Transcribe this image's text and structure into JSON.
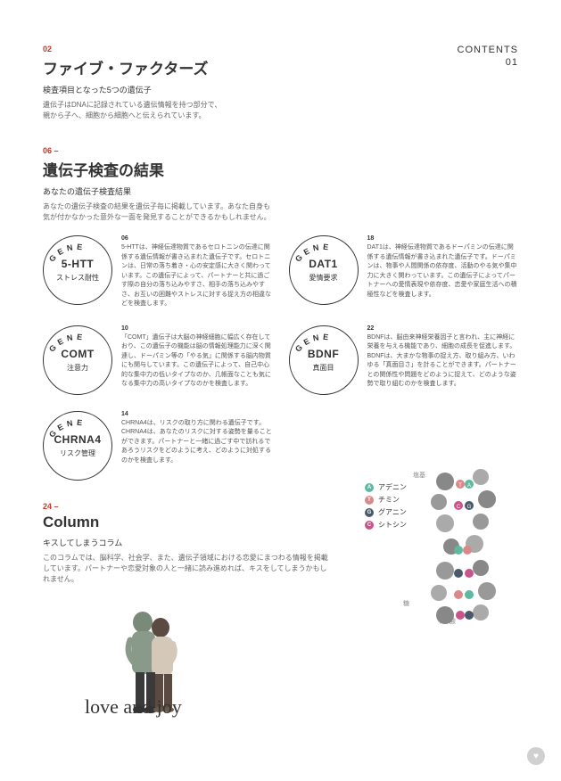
{
  "header": {
    "contents_label": "CONTENTS",
    "page_num": "01"
  },
  "sec1": {
    "num": "02",
    "title": "ファイブ・ファクターズ",
    "subtitle": "検査項目となった5つの遺伝子",
    "body1": "遺伝子はDNAに記録されている遺伝情報を持つ部分で、",
    "body2": "親から子へ、細胞から細胞へと伝えられています。"
  },
  "sec2": {
    "num": "06 –",
    "title": "遺伝子検査の結果",
    "subtitle": "あなたの遺伝子検査結果",
    "body1": "あなたの遺伝子検査の結果を遺伝子毎に掲載しています。あなた自身も",
    "body2": "気が付かなかった意外な一面を発見することができるかもしれません。"
  },
  "genes": [
    {
      "name": "5-HTT",
      "sub": "ストレス耐性",
      "num": "06",
      "desc": "5-HTTは、神経伝達物質であるセロトニンの伝達に関係する遺伝情報が書き込まれた遺伝子です。セロトニンは、日常の落ち着き・心の安定感に大きく関わっています。この遺伝子によって、パートナーと共に過ごす際の自分の落ち込みやすさ、相手の落ち込みやすさ、お互いの困難やストレスに対する捉え方の相違などを検査します。"
    },
    {
      "name": "DAT1",
      "sub": "愛情要求",
      "num": "18",
      "desc": "DAT1は、神経伝達物質であるドーパミンの伝達に関係する遺伝情報が書き込まれた遺伝子です。ドーパミンは、物事や人間関係の依存度、活動のやる気や集中力に大きく関わっています。この遺伝子によってパートナーへの愛情表現や依存度、恋愛や家庭生活への積極性などを検査します。"
    },
    {
      "name": "COMT",
      "sub": "注意力",
      "num": "10",
      "desc": "「COMT」遺伝子は大脳の神経細胞に幅広く存在しており、この遺伝子の機能は脳の情報処理能力に深く関連し、ドーパミン等の「やる気」に関係する脳内物質にも関与しています。この遺伝子によって、自己中心的な集中力の低いタイプなのか、几帳面なことも気になる集中力の高いタイプなのかを検査します。"
    },
    {
      "name": "BDNF",
      "sub": "真面目",
      "num": "22",
      "desc": "BDNFは、脳由来神経栄養因子と言われ、主に神経に栄養を与える機能であり、細胞の成長を促進します。BDNFは、大まかな物事の捉え方、取り組み方、いわゆる「真面目さ」を計ることができます。パートナーとの関係性や問題をどのように捉えて、どのような姿勢で取り組むのかを検査します。"
    },
    {
      "name": "CHRNA4",
      "sub": "リスク管理",
      "num": "14",
      "desc": "CHRNA4は、リスクの取り方に関わる遺伝子です。CHRNA4は、あなたのリスクに対する姿勢を量ることができます。パートナーと一緒に過ごす中で訪れるであろうリスクをどのように考え、どのように対処するのかを検査します。"
    }
  ],
  "gene_label": "GENE",
  "column": {
    "num": "24 –",
    "title": "Column",
    "subtitle": "キスしてしまうコラム",
    "body": "このコラムでは、脳科学、社会学、また、遺伝子領域における恋愛にまつわる情報を掲載しています。パートナーや恋愛対象の人と一緒に読み進めれば、キスをしてしまうかもしれません。"
  },
  "love_text": "love and joy",
  "dna": {
    "base_label": "塩基",
    "sugar_label": "糖",
    "phosphate_label": "リン酸",
    "legend": [
      {
        "letter": "A",
        "jp": "アデニン",
        "color": "#5fb8a0"
      },
      {
        "letter": "T",
        "jp": "チミン",
        "color": "#d88a8a"
      },
      {
        "letter": "G",
        "jp": "グアニン",
        "color": "#4a5a6a"
      },
      {
        "letter": "C",
        "jp": "シトシン",
        "color": "#c9548a"
      }
    ]
  },
  "colors": {
    "accent": "#c0392b",
    "circle_border": "#333333",
    "text_gray": "#666666"
  }
}
